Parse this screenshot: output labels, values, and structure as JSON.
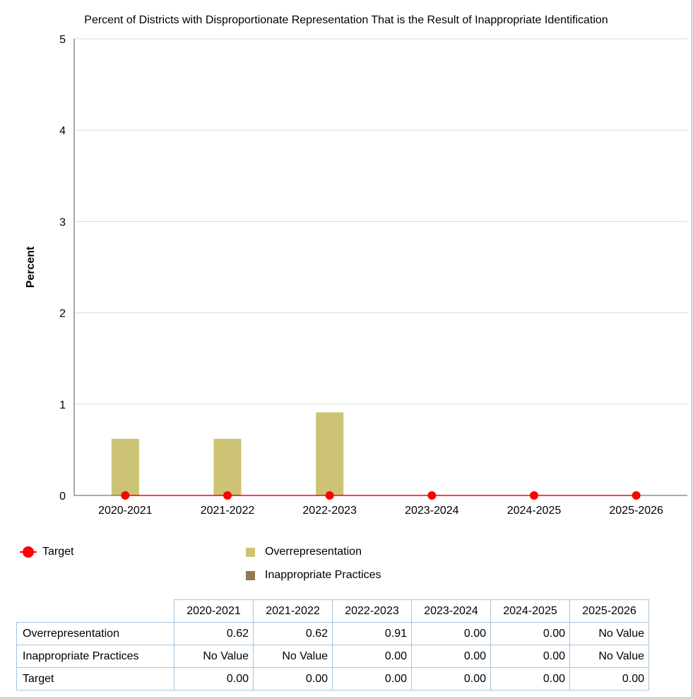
{
  "chart_data": {
    "type": "bar",
    "title": "Percent of Districts with Disproportionate Representation That is the Result of Inappropriate Identification",
    "ylabel": "Percent",
    "xlabel": "",
    "ylim": [
      0,
      5
    ],
    "yticks": [
      "0",
      "1",
      "2",
      "3",
      "4",
      "5"
    ],
    "grid": true,
    "categories": [
      "2020-2021",
      "2021-2022",
      "2022-2023",
      "2023-2024",
      "2024-2025",
      "2025-2026"
    ],
    "series": [
      {
        "name": "Overrepresentation",
        "kind": "bar",
        "color": "#ccc374",
        "values": [
          0.62,
          0.62,
          0.91,
          0.0,
          0.0,
          null
        ]
      },
      {
        "name": "Inappropriate Practices",
        "kind": "bar",
        "color": "#957a4b",
        "values": [
          null,
          null,
          0.0,
          0.0,
          0.0,
          null
        ]
      },
      {
        "name": "Target",
        "kind": "line-marker",
        "color": "#ff0000",
        "values": [
          0.0,
          0.0,
          0.0,
          0.0,
          0.0,
          0.0
        ]
      }
    ],
    "legend_placement": "bottom"
  },
  "legend": {
    "target": "Target",
    "overrepresentation": "Overrepresentation",
    "inappropriate": "Inappropriate Practices"
  },
  "table": {
    "headers": [
      "2020-2021",
      "2021-2022",
      "2022-2023",
      "2023-2024",
      "2024-2025",
      "2025-2026"
    ],
    "rows": [
      {
        "label": "Overrepresentation",
        "cells": [
          "0.62",
          "0.62",
          "0.91",
          "0.00",
          "0.00",
          "No Value"
        ]
      },
      {
        "label": "Inappropriate Practices",
        "cells": [
          "No Value",
          "No Value",
          "0.00",
          "0.00",
          "0.00",
          "No Value"
        ]
      },
      {
        "label": "Target",
        "cells": [
          "0.00",
          "0.00",
          "0.00",
          "0.00",
          "0.00",
          "0.00"
        ]
      }
    ]
  }
}
